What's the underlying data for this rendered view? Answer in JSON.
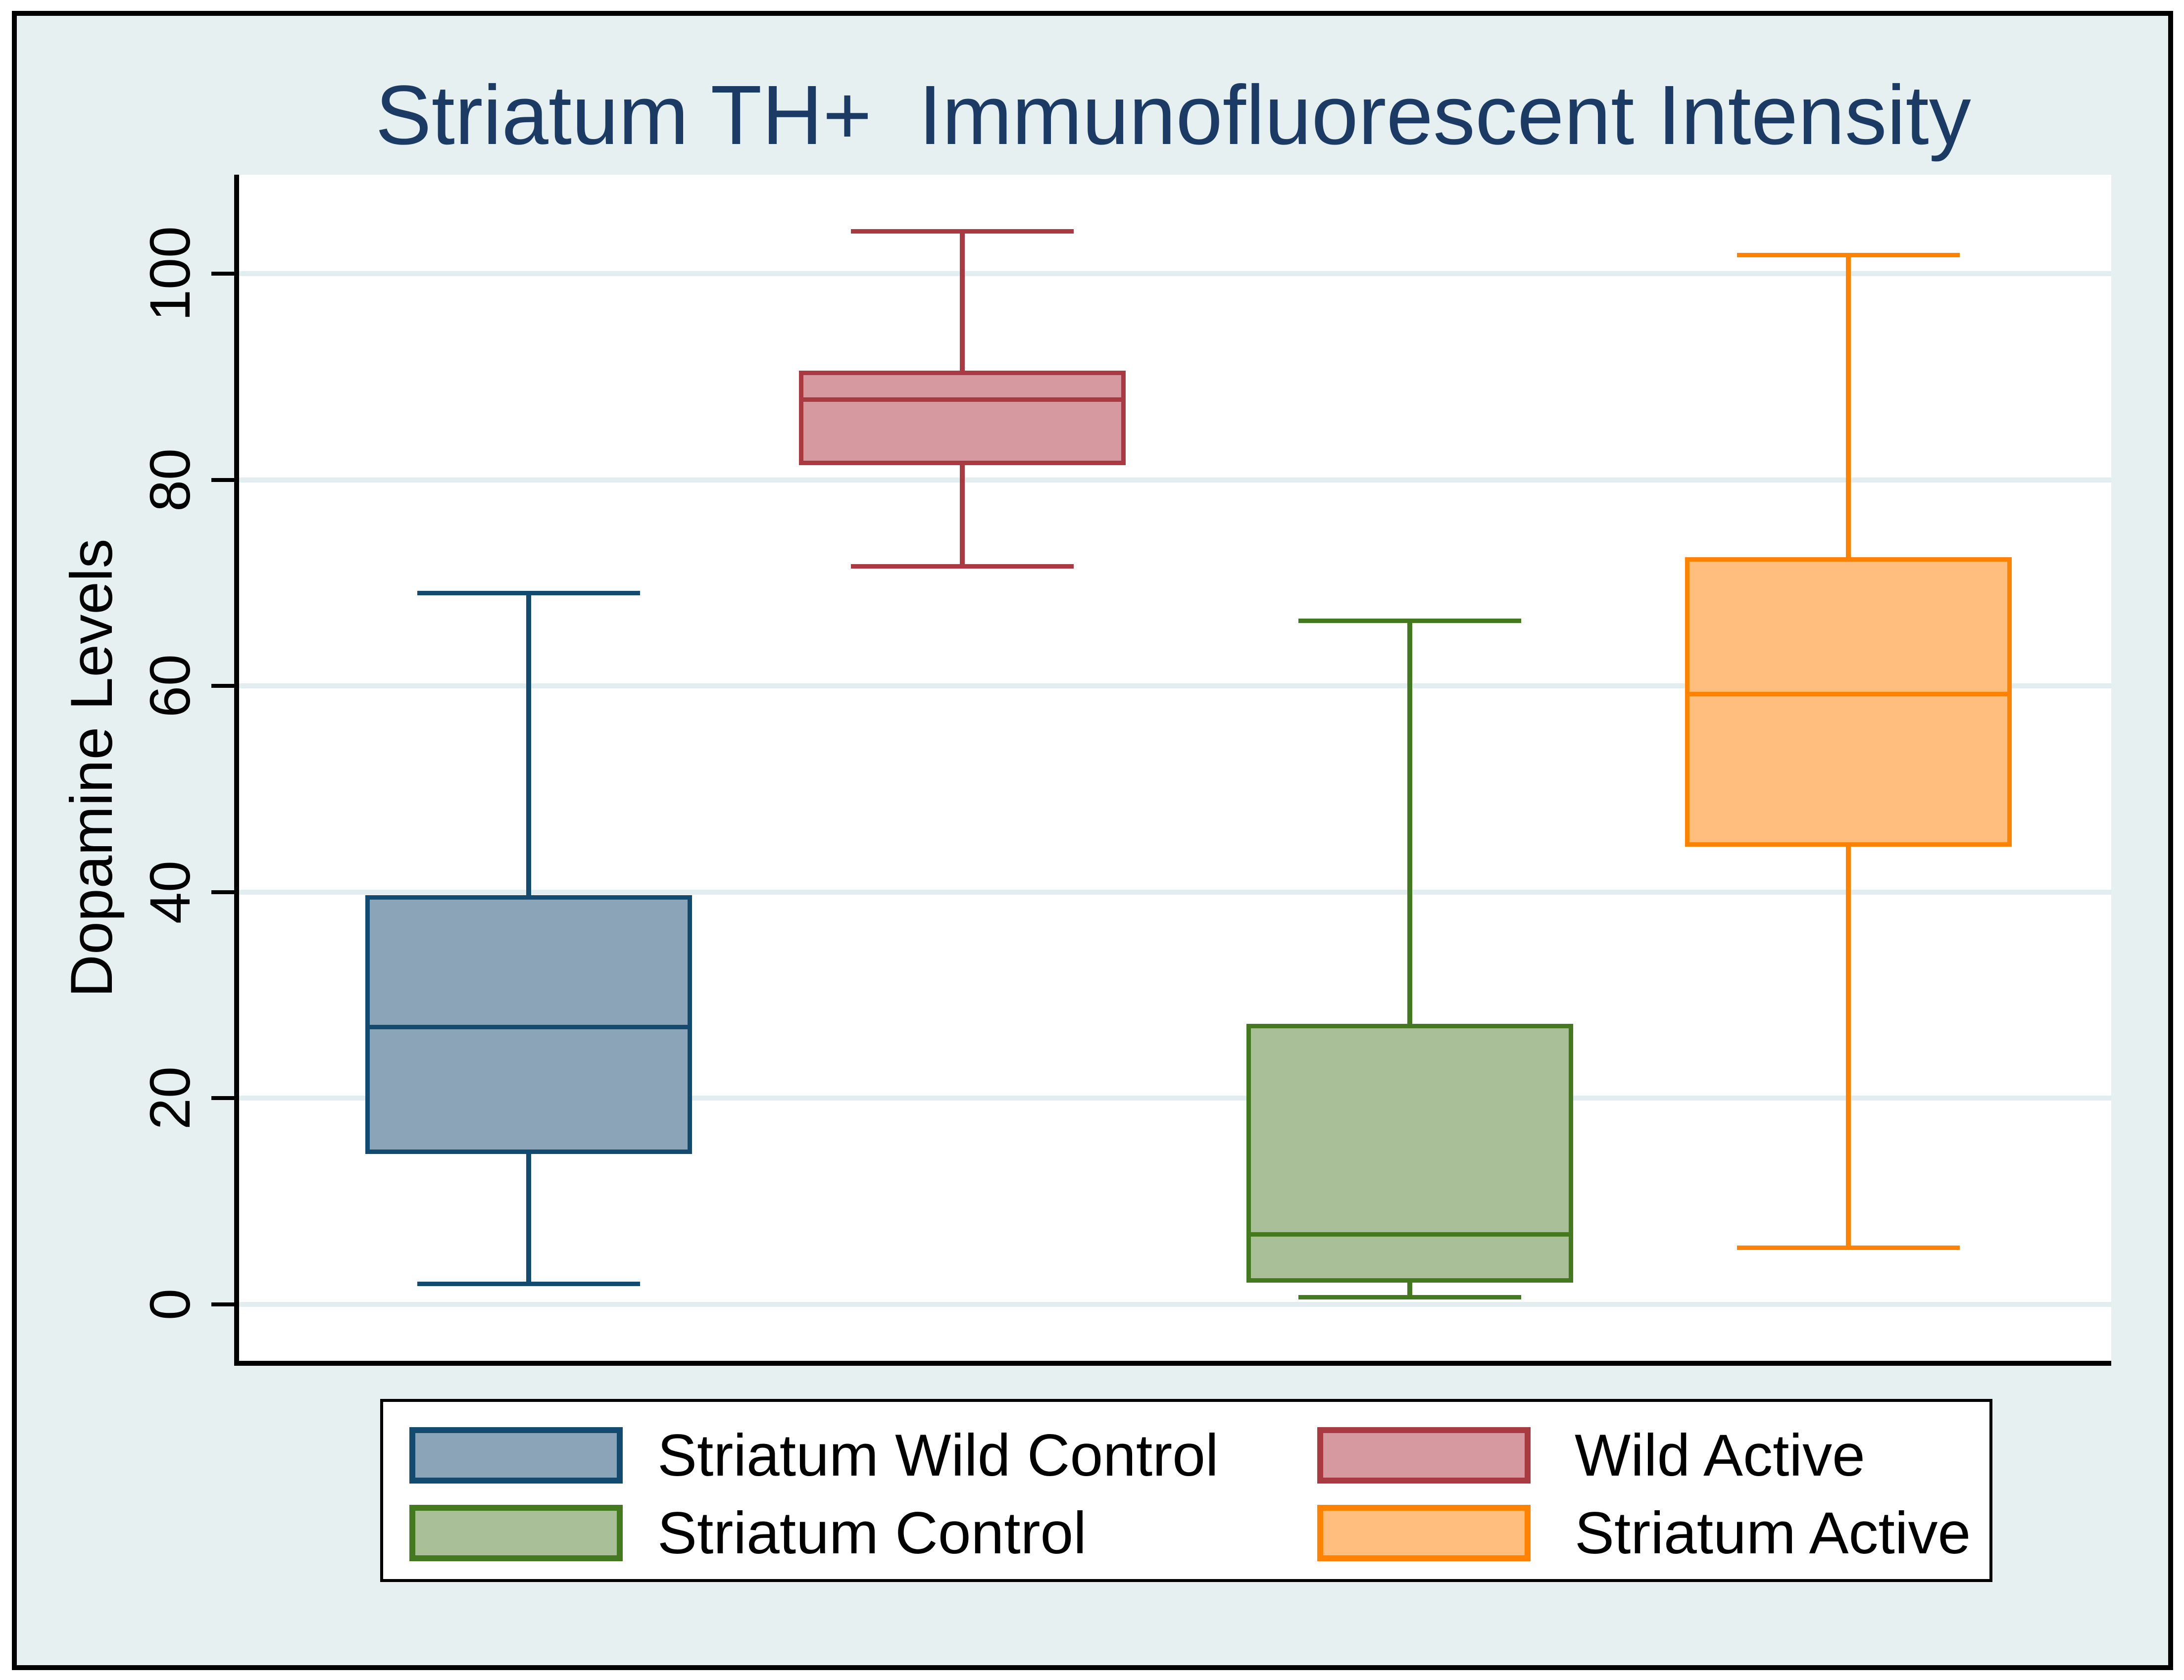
{
  "chart_data": {
    "type": "box",
    "title": "Striatum TH+  Immunofluorescent Intensity",
    "title_color": "#1b3a64",
    "ylabel": "Dopamine Levels",
    "yticks": [
      0,
      20,
      40,
      60,
      80,
      100
    ],
    "ytick_labels": [
      "0",
      "20",
      "40",
      "60",
      "80",
      "100"
    ],
    "ylim": [
      -5,
      110
    ],
    "grid": true,
    "gridline_color": "#e2edef",
    "background_color": "#e7f0f1",
    "plot_background": "#ffffff",
    "legend_position": "bottom",
    "series": [
      {
        "name": "Striatum Wild Control",
        "border_color": "#134a70",
        "fill_color": "#8ba4b8",
        "whisker_low": 2.0,
        "q1": 14.6,
        "median": 26.9,
        "q3": 39.7,
        "whisker_high": 69.0
      },
      {
        "name": "Wild Active",
        "border_color": "#a93a42",
        "fill_color": "#d699a0",
        "whisker_low": 71.6,
        "q1": 81.4,
        "median": 87.8,
        "q3": 90.6,
        "whisker_high": 104.1
      },
      {
        "name": "Striatum Control",
        "border_color": "#44791f",
        "fill_color": "#a9bf98",
        "whisker_low": 0.7,
        "q1": 2.1,
        "median": 6.8,
        "q3": 27.2,
        "whisker_high": 66.3
      },
      {
        "name": "Striatum Active",
        "border_color": "#ff8200",
        "fill_color": "#ffbe7d",
        "whisker_low": 5.5,
        "q1": 44.4,
        "median": 59.2,
        "q3": 72.5,
        "whisker_high": 101.8
      }
    ],
    "legend_entries": [
      "Striatum Wild Control",
      "Wild Active",
      "Striatum Control",
      "Striatum Active"
    ]
  }
}
